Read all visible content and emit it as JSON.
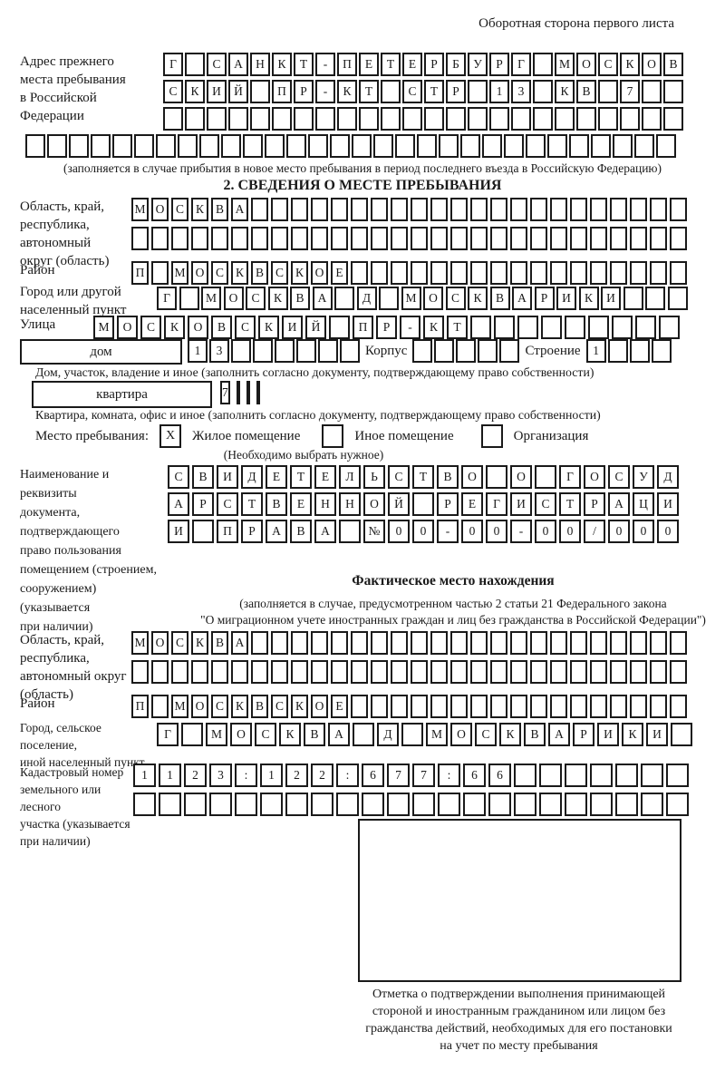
{
  "colors": {
    "ink": "#1a1a1a",
    "paper": "#ffffff"
  },
  "labels": {
    "header_note": "Оборотная сторона первого листа",
    "prev_address": "Адрес прежнего\nместа пребывания\nв Российской\nФедерации",
    "prev_note": "(заполняется в случае прибытия в новое место пребывания в период последнего въезда в Российскую Федерацию)",
    "section2_title": "2. СВЕДЕНИЯ О МЕСТЕ ПРЕБЫВАНИЯ",
    "region": "Область, край,\nреспублика,\nавтономный\nокруг (область)",
    "district": "Район",
    "city": "Город или другой\nнаселенный пункт",
    "street": "Улица",
    "house_box": "дом",
    "korpus": "Корпус",
    "stroenie": "Строение",
    "house_note": "Дом, участок, владение и иное (заполнить согласно документу, подтверждающему право собственности)",
    "flat_box": "квартира",
    "flat_note": "Квартира, комната, офис и иное (заполнить согласно документу, подтверждающему право собственности)",
    "stay_type": "Место пребывания:",
    "stay_note": "(Необходимо выбрать нужное)",
    "doc": "Наименование и реквизиты\nдокумента, подтверждающего\nправо пользования\nпомещением (строением,\nсооружением) (указывается\nпри наличии)",
    "fact_title": "Фактическое место нахождения",
    "fact_note1": "(заполняется в случае, предусмотренном частью 2 статьи 21 Федерального закона",
    "fact_note2": "\"О миграционном учете иностранных граждан и лиц без гражданства в Российской Федерации\")",
    "fact_region": "Область, край,\nреспублика,\nавтономный округ\n(область)",
    "fact_district": "Район",
    "fact_city": "Город, сельское поселение,\nиной населенный пункт",
    "cadastral": "Кадастровый номер\nземельного или лесного\nучастка (указывается\nпри наличии)",
    "stamp_caption": "Отметка о подтверждении выполнения принимающей\nстороной и иностранным гражданином или лицом без\nгражданства действий, необходимых для его постановки\nна учет по месту пребывания"
  },
  "stay": {
    "options": [
      {
        "label": "Жилое помещение",
        "mark": "X"
      },
      {
        "label": "Иное помещение",
        "mark": ""
      },
      {
        "label": "Организация",
        "mark": ""
      }
    ]
  },
  "cells": {
    "prev1": {
      "count": 24,
      "chars": [
        "Г",
        "",
        "С",
        "А",
        "Н",
        "К",
        "Т",
        "-",
        "П",
        "Е",
        "Т",
        "Е",
        "Р",
        "Б",
        "У",
        "Р",
        "Г",
        "",
        "М",
        "О",
        "С",
        "К",
        "О",
        "В"
      ]
    },
    "prev2": {
      "count": 24,
      "chars": [
        "С",
        "К",
        "И",
        "Й",
        "",
        "П",
        "Р",
        "-",
        "К",
        "Т",
        "",
        "С",
        "Т",
        "Р",
        "",
        "1",
        "3",
        "",
        "К",
        "В",
        "",
        "7"
      ]
    },
    "prev3": {
      "count": 24,
      "chars": []
    },
    "prev4": {
      "count": 30,
      "chars": []
    },
    "region1": {
      "count": 28,
      "chars": [
        "М",
        "О",
        "С",
        "К",
        "В",
        "А"
      ]
    },
    "region2": {
      "count": 28,
      "chars": []
    },
    "district": {
      "count": 28,
      "chars": [
        "П",
        "",
        "М",
        "О",
        "С",
        "К",
        "В",
        "С",
        "К",
        "О",
        "Е"
      ]
    },
    "city": {
      "count": 24,
      "chars": [
        "Г",
        "",
        "М",
        "О",
        "С",
        "К",
        "В",
        "А",
        "",
        "Д",
        "",
        "М",
        "О",
        "С",
        "К",
        "В",
        "А",
        "Р",
        "И",
        "К",
        "И"
      ]
    },
    "street": {
      "count": 25,
      "chars": [
        "М",
        "О",
        "С",
        "К",
        "О",
        "В",
        "С",
        "К",
        "И",
        "Й",
        "",
        "П",
        "Р",
        "-",
        "К",
        "Т"
      ]
    },
    "house": {
      "count": 8,
      "chars": [
        "1",
        "3"
      ]
    },
    "korpus": {
      "count": 5,
      "chars": []
    },
    "stroenie": {
      "count": 4,
      "chars": [
        "1"
      ]
    },
    "flat": {
      "count": 4,
      "chars": [
        "7"
      ]
    },
    "doc1": {
      "count": 21,
      "chars": [
        "С",
        "В",
        "И",
        "Д",
        "Е",
        "Т",
        "Е",
        "Л",
        "Ь",
        "С",
        "Т",
        "В",
        "О",
        "",
        "О",
        "",
        "Г",
        "О",
        "С",
        "У",
        "Д"
      ]
    },
    "doc2": {
      "count": 21,
      "chars": [
        "А",
        "Р",
        "С",
        "Т",
        "В",
        "Е",
        "Н",
        "Н",
        "О",
        "Й",
        "",
        "Р",
        "Е",
        "Г",
        "И",
        "С",
        "Т",
        "Р",
        "А",
        "Ц",
        "И"
      ]
    },
    "doc3": {
      "count": 21,
      "chars": [
        "И",
        "",
        "П",
        "Р",
        "А",
        "В",
        "А",
        "",
        "№",
        "0",
        "0",
        "-",
        "0",
        "0",
        "-",
        "0",
        "0",
        "/",
        "0",
        "0",
        "0"
      ]
    },
    "fact_region1": {
      "count": 28,
      "chars": [
        "М",
        "О",
        "С",
        "К",
        "В",
        "А"
      ]
    },
    "fact_region2": {
      "count": 28,
      "chars": []
    },
    "fact_district": {
      "count": 28,
      "chars": [
        "П",
        "",
        "М",
        "О",
        "С",
        "К",
        "В",
        "С",
        "К",
        "О",
        "Е"
      ]
    },
    "fact_city": {
      "count": 22,
      "chars": [
        "Г",
        "",
        "М",
        "О",
        "С",
        "К",
        "В",
        "А",
        "",
        "Д",
        "",
        "М",
        "О",
        "С",
        "К",
        "В",
        "А",
        "Р",
        "И",
        "К",
        "И"
      ]
    },
    "cad1": {
      "count": 22,
      "chars": [
        "1",
        "1",
        "2",
        "3",
        ":",
        "1",
        "2",
        "2",
        ":",
        "6",
        "7",
        "7",
        ":",
        "6",
        "6"
      ]
    },
    "cad2": {
      "count": 22,
      "chars": []
    }
  }
}
